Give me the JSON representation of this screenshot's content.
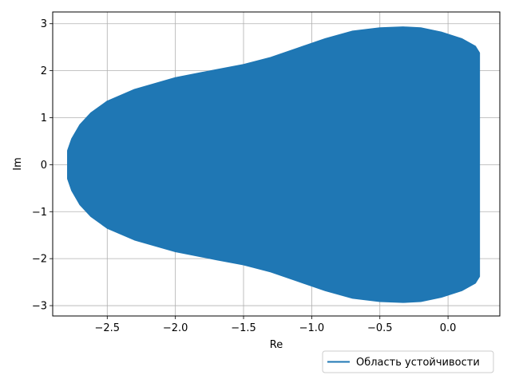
{
  "chart_data": {
    "type": "area",
    "xlabel": "Re",
    "ylabel": "Im",
    "xlim": [
      -2.9,
      0.38
    ],
    "ylim": [
      -3.22,
      3.25
    ],
    "x_ticks": [
      -2.5,
      -2.0,
      -1.5,
      -1.0,
      -0.5,
      0.0
    ],
    "x_tick_labels": [
      "−2.5",
      "−2.0",
      "−1.5",
      "−1.0",
      "−0.5",
      "0.0"
    ],
    "y_ticks": [
      -3,
      -2,
      -1,
      0,
      1,
      2,
      3
    ],
    "y_tick_labels": [
      "−3",
      "−2",
      "−1",
      "0",
      "1",
      "2",
      "3"
    ],
    "grid": true,
    "legend_position": "below-right",
    "series": [
      {
        "name": "Область устойчивости",
        "color": "#1f77b4",
        "boundary_upper": [
          [
            -2.79,
            0.0
          ],
          [
            -2.79,
            0.3
          ],
          [
            -2.76,
            0.55
          ],
          [
            -2.7,
            0.85
          ],
          [
            -2.62,
            1.1
          ],
          [
            -2.5,
            1.35
          ],
          [
            -2.3,
            1.6
          ],
          [
            -2.0,
            1.85
          ],
          [
            -1.7,
            2.02
          ],
          [
            -1.5,
            2.13
          ],
          [
            -1.3,
            2.28
          ],
          [
            -1.1,
            2.48
          ],
          [
            -0.9,
            2.68
          ],
          [
            -0.7,
            2.84
          ],
          [
            -0.5,
            2.91
          ],
          [
            -0.33,
            2.93
          ],
          [
            -0.2,
            2.91
          ],
          [
            -0.05,
            2.82
          ],
          [
            0.1,
            2.68
          ],
          [
            0.2,
            2.52
          ],
          [
            0.23,
            2.38
          ]
        ],
        "boundary_lower": [
          [
            0.23,
            -2.38
          ],
          [
            0.2,
            -2.52
          ],
          [
            0.1,
            -2.68
          ],
          [
            -0.05,
            -2.82
          ],
          [
            -0.2,
            -2.91
          ],
          [
            -0.33,
            -2.93
          ],
          [
            -0.5,
            -2.91
          ],
          [
            -0.7,
            -2.84
          ],
          [
            -0.9,
            -2.68
          ],
          [
            -1.1,
            -2.48
          ],
          [
            -1.3,
            -2.28
          ],
          [
            -1.5,
            -2.13
          ],
          [
            -1.7,
            -2.02
          ],
          [
            -2.0,
            -1.85
          ],
          [
            -2.3,
            -1.6
          ],
          [
            -2.5,
            -1.35
          ],
          [
            -2.62,
            -1.1
          ],
          [
            -2.7,
            -0.85
          ],
          [
            -2.76,
            -0.55
          ],
          [
            -2.79,
            -0.3
          ],
          [
            -2.79,
            0.0
          ]
        ]
      }
    ]
  }
}
